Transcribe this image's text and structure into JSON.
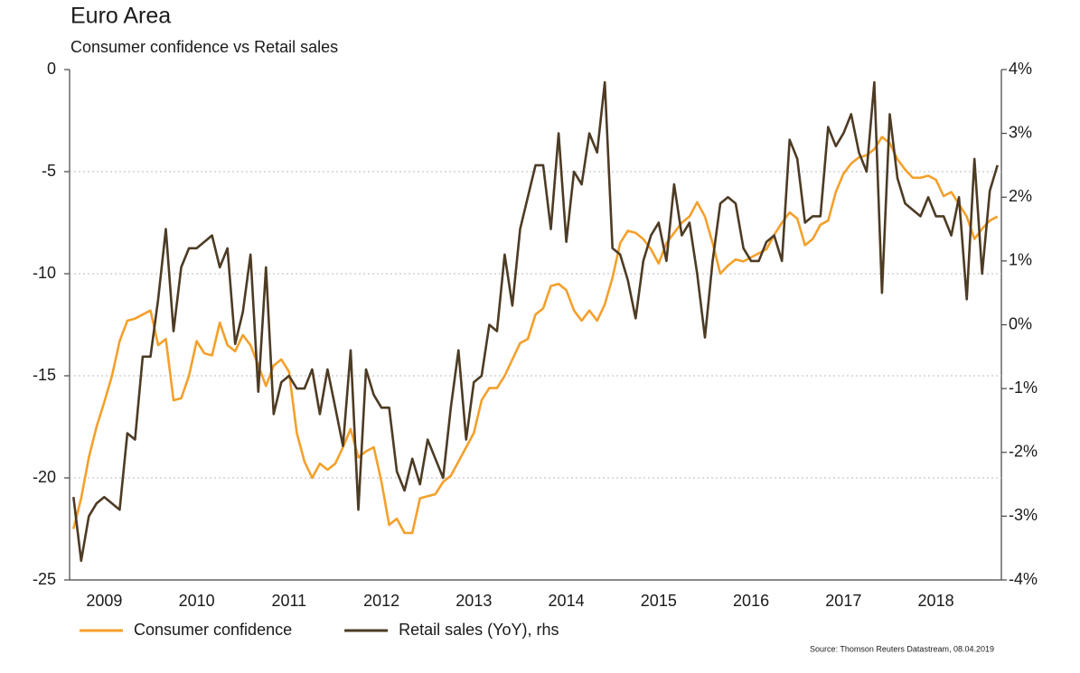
{
  "chart_data": {
    "type": "line",
    "title": "Euro Area",
    "subtitle": "Consumer confidence vs Retail sales",
    "source": "Source: Thomson Reuters Datastream, 08.04.2019",
    "categories": [
      null,
      null,
      null,
      null,
      "2009",
      null,
      null,
      null,
      null,
      null,
      null,
      null,
      null,
      null,
      null,
      null,
      "2010",
      null,
      null,
      null,
      null,
      null,
      null,
      null,
      null,
      null,
      null,
      null,
      "2011",
      null,
      null,
      null,
      null,
      null,
      null,
      null,
      null,
      null,
      null,
      null,
      "2012",
      null,
      null,
      null,
      null,
      null,
      null,
      null,
      null,
      null,
      null,
      null,
      "2013",
      null,
      null,
      null,
      null,
      null,
      null,
      null,
      null,
      null,
      null,
      null,
      "2014",
      null,
      null,
      null,
      null,
      null,
      null,
      null,
      null,
      null,
      null,
      null,
      "2015",
      null,
      null,
      null,
      null,
      null,
      null,
      null,
      null,
      null,
      null,
      null,
      "2016",
      null,
      null,
      null,
      null,
      null,
      null,
      null,
      null,
      null,
      null,
      null,
      "2017",
      null,
      null,
      null,
      null,
      null,
      null,
      null,
      null,
      null,
      null,
      null,
      "2018",
      null,
      null,
      null,
      null,
      null,
      null,
      null,
      null
    ],
    "ylim": [
      -25,
      0
    ],
    "yticks": [
      0,
      -5,
      -10,
      -15,
      -20,
      -25
    ],
    "y2lim": [
      -4,
      4
    ],
    "y2ticks": [
      {
        "value": 4,
        "label": "4%"
      },
      {
        "value": 3,
        "label": "3%"
      },
      {
        "value": 2,
        "label": "2%"
      },
      {
        "value": 1,
        "label": "1%"
      },
      {
        "value": 0,
        "label": "0%"
      },
      {
        "value": -1,
        "label": "-1%"
      },
      {
        "value": -2,
        "label": "-2%"
      },
      {
        "value": -3,
        "label": "-3%"
      },
      {
        "value": -4,
        "label": "-4%"
      }
    ],
    "grid": true,
    "legend": "bottom",
    "series": [
      {
        "name": "Consumer confidence",
        "color": "#f4a02b",
        "axis": "y",
        "values": [
          -22.5,
          -21,
          -19,
          -17.5,
          -16.3,
          -15,
          -13.3,
          -12.3,
          -12.2,
          -12,
          -11.8,
          -13.5,
          -13.2,
          -16.2,
          -16.1,
          -15,
          -13.3,
          -13.9,
          -14,
          -12.4,
          -13.5,
          -13.8,
          -13,
          -13.5,
          -14.5,
          -15.5,
          -14.5,
          -14.2,
          -14.8,
          -17.8,
          -19.2,
          -20,
          -19.3,
          -19.6,
          -19.3,
          -18.5,
          -17.6,
          -19,
          -18.7,
          -18.5,
          -20.2,
          -22.3,
          -22,
          -22.7,
          -22.7,
          -21,
          -20.9,
          -20.8,
          -20.2,
          -19.9,
          -19.2,
          -18.5,
          -17.8,
          -16.2,
          -15.6,
          -15.6,
          -15,
          -14.2,
          -13.4,
          -13.2,
          -12,
          -11.7,
          -10.6,
          -10.5,
          -10.8,
          -11.8,
          -12.3,
          -11.8,
          -12.3,
          -11.5,
          -10.2,
          -8.5,
          -7.9,
          -8,
          -8.3,
          -8.8,
          -9.5,
          -8.5,
          -8,
          -7.5,
          -7.2,
          -6.5,
          -7.2,
          -8.5,
          -10,
          -9.6,
          -9.3,
          -9.4,
          -9.2,
          -9,
          -8.8,
          -8.1,
          -7.5,
          -7,
          -7.3,
          -8.6,
          -8.3,
          -7.6,
          -7.4,
          -6,
          -5.1,
          -4.6,
          -4.3,
          -4.2,
          -3.9,
          -3.3,
          -3.6,
          -4.4,
          -4.9,
          -5.3,
          -5.3,
          -5.2,
          -5.4,
          -6.2,
          -6,
          -6.6,
          -7.2,
          -8.3,
          -7.8,
          -7.4,
          -7.2
        ]
      },
      {
        "name": "Retail sales (YoY), rhs",
        "color": "#4d3b24",
        "axis": "y2",
        "values": [
          -2.7,
          -3.7,
          -3.0,
          -2.8,
          -2.7,
          -2.8,
          -2.9,
          -1.7,
          -1.8,
          -0.5,
          -0.5,
          0.4,
          1.5,
          -0.1,
          0.9,
          1.2,
          1.2,
          1.3,
          1.4,
          0.9,
          1.2,
          -0.3,
          0.2,
          1.1,
          -1.05,
          0.9,
          -1.4,
          -0.9,
          -0.8,
          -1.0,
          -1.0,
          -0.7,
          -1.4,
          -0.7,
          -1.3,
          -1.9,
          -0.4,
          -2.9,
          -0.7,
          -1.1,
          -1.3,
          -1.3,
          -2.3,
          -2.6,
          -2.1,
          -2.5,
          -1.8,
          -2.1,
          -2.4,
          -1.3,
          -0.4,
          -1.8,
          -0.9,
          -0.8,
          0.0,
          -0.1,
          1.1,
          0.3,
          1.5,
          2.0,
          2.5,
          2.5,
          1.5,
          3.0,
          1.3,
          2.4,
          2.2,
          3.0,
          2.7,
          3.8,
          1.2,
          1.1,
          0.7,
          0.1,
          1.0,
          1.4,
          1.6,
          1.0,
          2.2,
          1.4,
          1.6,
          0.8,
          -0.2,
          1.0,
          1.9,
          2.0,
          1.9,
          1.2,
          1.0,
          1.0,
          1.3,
          1.4,
          1.0,
          2.9,
          2.6,
          1.6,
          1.7,
          1.7,
          3.1,
          2.8,
          3.0,
          3.3,
          2.7,
          2.4,
          3.8,
          0.5,
          3.3,
          2.3,
          1.9,
          1.8,
          1.7,
          2.0,
          1.7,
          1.7,
          1.4,
          2.0,
          0.4,
          2.6,
          0.8,
          2.1,
          2.5
        ]
      }
    ]
  }
}
